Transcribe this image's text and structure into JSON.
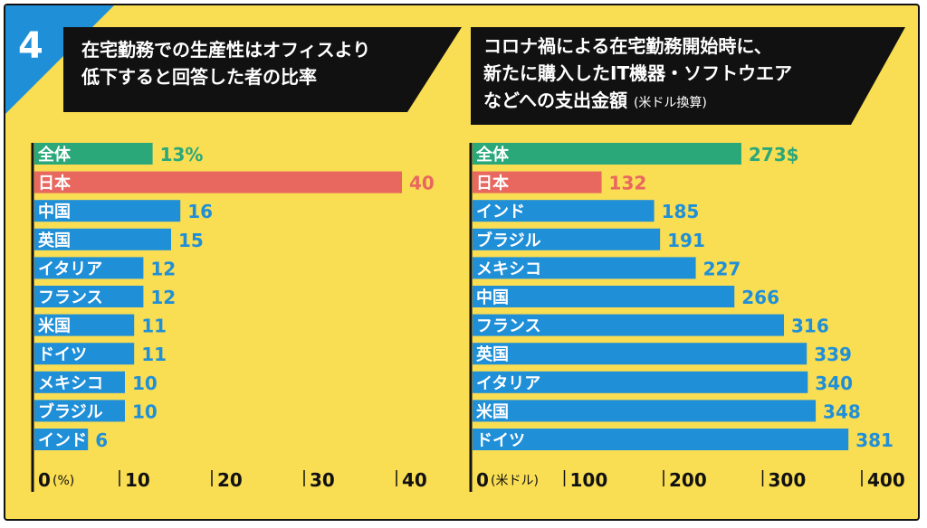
{
  "badge": {
    "number": "4",
    "color": "#1f8fd8"
  },
  "colors": {
    "background": "#f9dd53",
    "bar_default": "#1f8fd8",
    "bar_total": "#2aa87a",
    "bar_japan": "#e8675f",
    "label_default": "#1f8fd8",
    "label_total": "#2aa87a",
    "label_japan": "#e8675f",
    "title_box": "#111111"
  },
  "chart_data": [
    {
      "type": "bar",
      "orientation": "horizontal",
      "title_lines": [
        "在宅勤務での生産性はオフィスより",
        "低下すると回答した者の比率"
      ],
      "categories": [
        "全体",
        "日本",
        "中国",
        "英国",
        "イタリア",
        "フランス",
        "米国",
        "ドイツ",
        "メキシコ",
        "ブラジル",
        "インド"
      ],
      "values": [
        13,
        40,
        16,
        15,
        12,
        12,
        11,
        11,
        10,
        10,
        6
      ],
      "value_labels": [
        "13%",
        "40",
        "16",
        "15",
        "12",
        "12",
        "11",
        "11",
        "10",
        "10",
        "6"
      ],
      "highlight": {
        "全体": "total",
        "日本": "japan"
      },
      "xlim": [
        0,
        40
      ],
      "ticks": [
        0,
        10,
        20,
        30,
        40
      ],
      "tick_labels": [
        "0",
        "10",
        "20",
        "30",
        "40"
      ],
      "unit_label": "(%)"
    },
    {
      "type": "bar",
      "orientation": "horizontal",
      "title_lines": [
        "コロナ禍による在宅勤務開始時に、",
        "新たに購入したIT機器・ソフトウエア",
        "などへの支出金額"
      ],
      "title_note": "(米ドル換算)",
      "categories": [
        "全体",
        "日本",
        "インド",
        "ブラジル",
        "メキシコ",
        "中国",
        "フランス",
        "英国",
        "イタリア",
        "米国",
        "ドイツ"
      ],
      "values": [
        273,
        132,
        185,
        191,
        227,
        266,
        316,
        339,
        340,
        348,
        381
      ],
      "value_labels": [
        "273$",
        "132",
        "185",
        "191",
        "227",
        "266",
        "316",
        "339",
        "340",
        "348",
        "381"
      ],
      "highlight": {
        "全体": "total",
        "日本": "japan"
      },
      "xlim": [
        0,
        400
      ],
      "ticks": [
        0,
        100,
        200,
        300,
        400
      ],
      "tick_labels": [
        "0",
        "100",
        "200",
        "300",
        "400"
      ],
      "unit_label": "(米ドル)"
    }
  ]
}
